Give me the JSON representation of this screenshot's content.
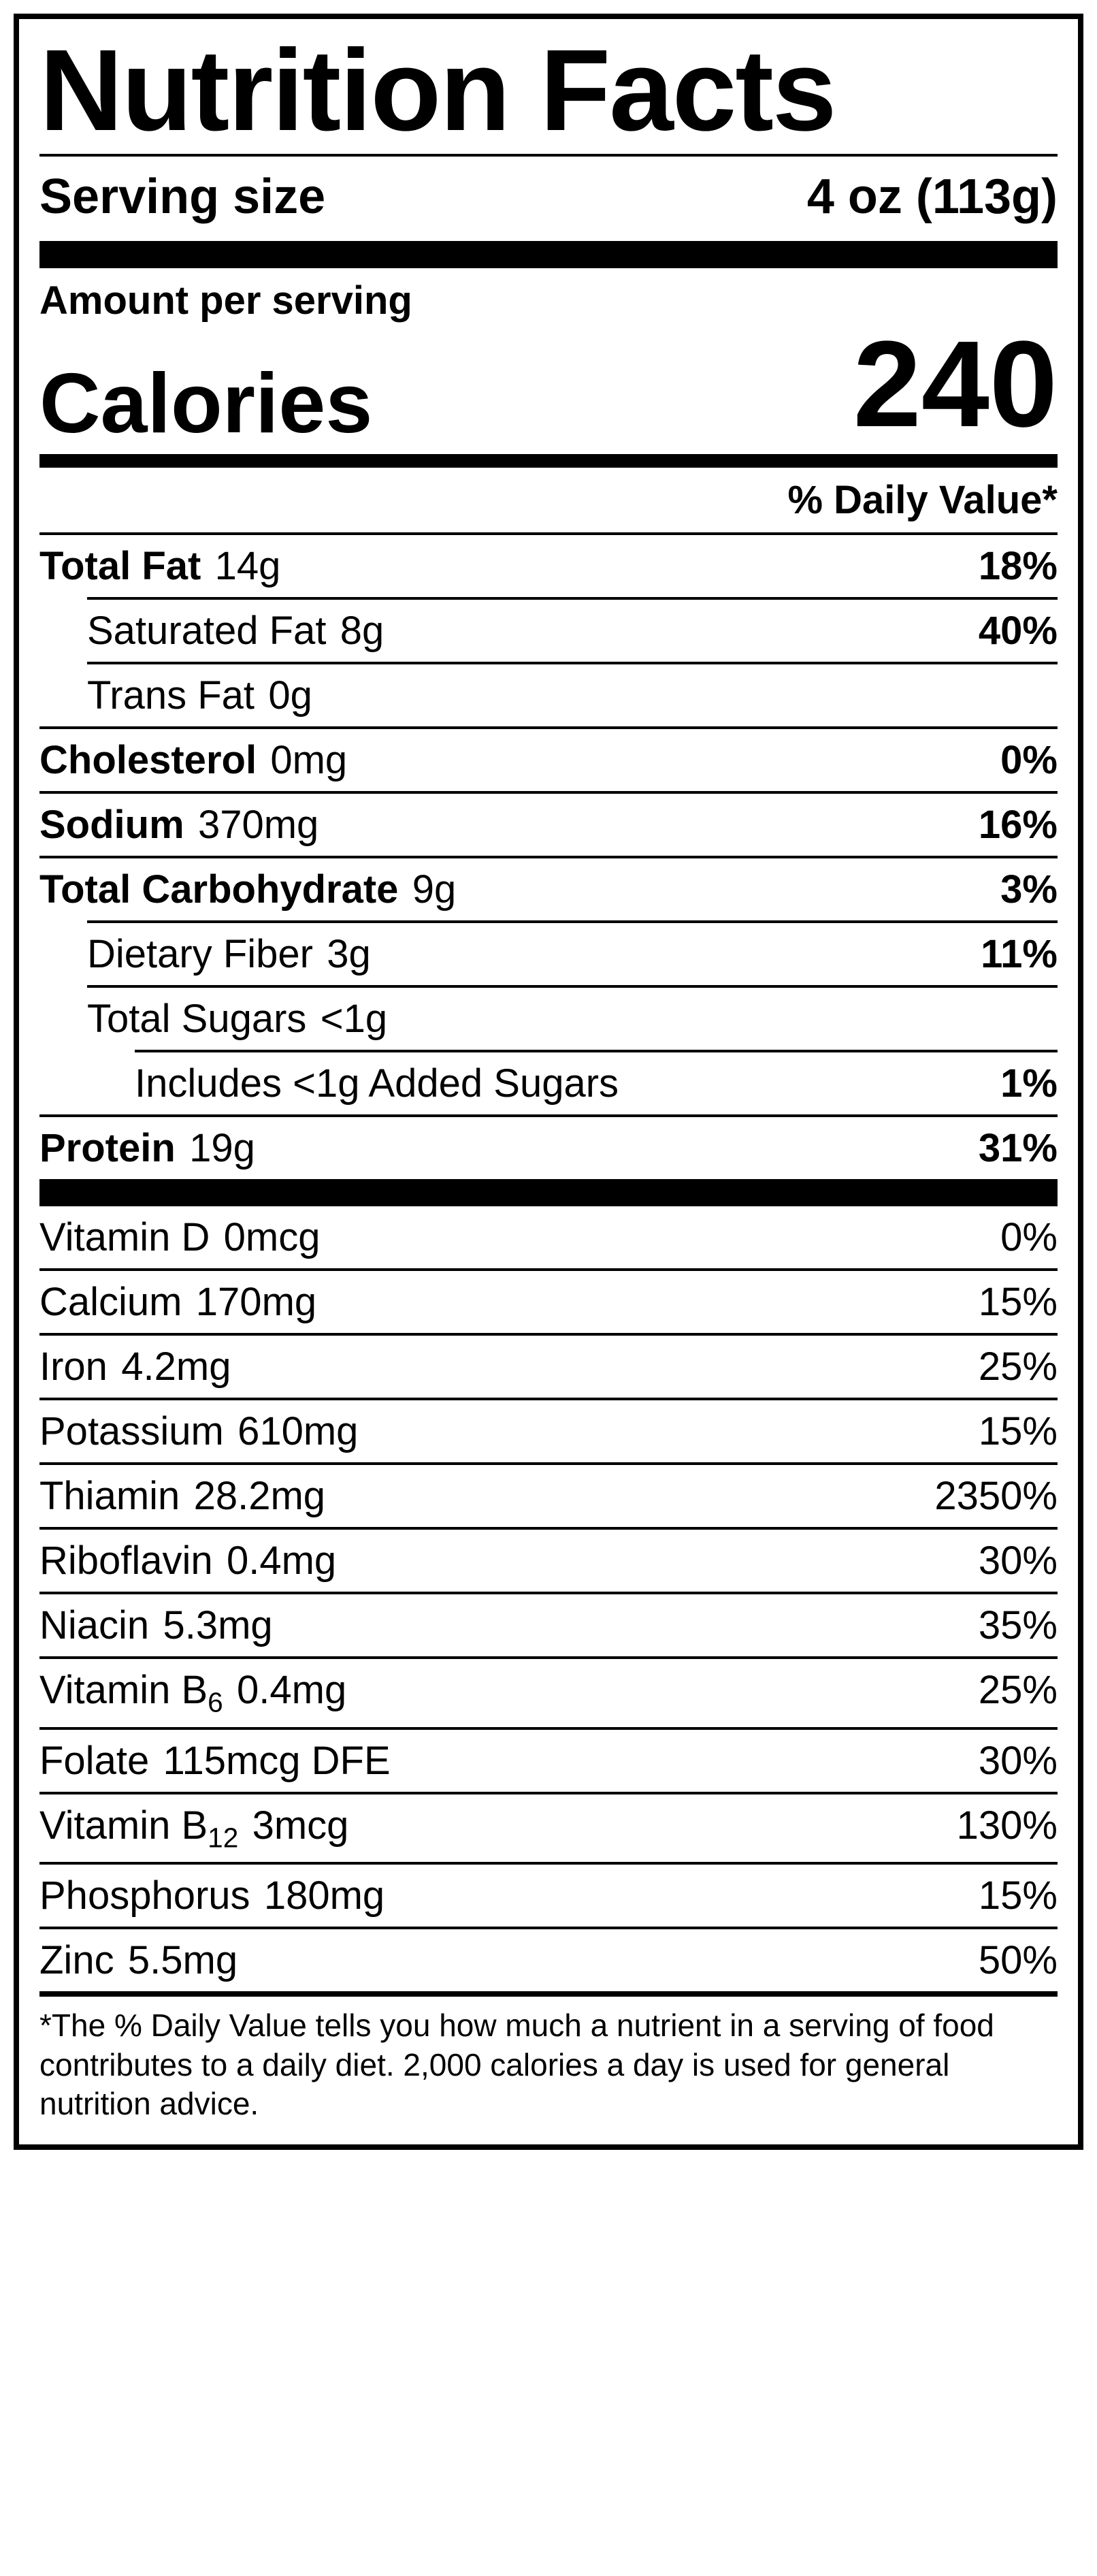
{
  "title": "Nutrition Facts",
  "serving": {
    "label": "Serving size",
    "value": "4 oz (113g)"
  },
  "amount_per_serving_label": "Amount per serving",
  "calories": {
    "label": "Calories",
    "value": "240"
  },
  "dv_header": "% Daily Value*",
  "macros": [
    {
      "indent": 0,
      "name": "Total Fat",
      "amount": "14g",
      "dv": "18%",
      "bold": true
    },
    {
      "indent": 1,
      "name": "Saturated Fat",
      "amount": "8g",
      "dv": "40%",
      "bold": false,
      "dv_bold": true
    },
    {
      "indent": 1,
      "name": "Trans Fat",
      "amount": "0g",
      "dv": "",
      "bold": false
    },
    {
      "indent": 0,
      "name": "Cholesterol",
      "amount": "0mg",
      "dv": "0%",
      "bold": true
    },
    {
      "indent": 0,
      "name": "Sodium",
      "amount": "370mg",
      "dv": "16%",
      "bold": true
    },
    {
      "indent": 0,
      "name": "Total Carbohydrate",
      "amount": "9g",
      "dv": "3%",
      "bold": true
    },
    {
      "indent": 1,
      "name": "Dietary Fiber",
      "amount": "3g",
      "dv": "11%",
      "bold": false,
      "dv_bold": true
    },
    {
      "indent": 1,
      "name": "Total Sugars",
      "amount": "<1g",
      "dv": "",
      "bold": false
    },
    {
      "indent": 2,
      "name": "Includes <1g Added Sugars",
      "amount": "",
      "dv": "1%",
      "bold": false,
      "dv_bold": true
    },
    {
      "indent": 0,
      "name": "Protein",
      "amount": "19g",
      "dv": "31%",
      "bold": true
    }
  ],
  "micros": [
    {
      "name": "Vitamin D",
      "amount": "0mcg",
      "dv": "0%"
    },
    {
      "name": "Calcium",
      "amount": "170mg",
      "dv": "15%"
    },
    {
      "name": "Iron",
      "amount": "4.2mg",
      "dv": "25%"
    },
    {
      "name": "Potassium",
      "amount": "610mg",
      "dv": "15%"
    },
    {
      "name": "Thiamin",
      "amount": "28.2mg",
      "dv": "2350%"
    },
    {
      "name": "Riboflavin",
      "amount": "0.4mg",
      "dv": "30%"
    },
    {
      "name": "Niacin",
      "amount": "5.3mg",
      "dv": "35%"
    },
    {
      "name_html": "Vitamin B<span class=\"sub\">6</span>",
      "amount": "0.4mg",
      "dv": "25%"
    },
    {
      "name": "Folate",
      "amount": "115mcg DFE",
      "dv": "30%"
    },
    {
      "name_html": "Vitamin B<span class=\"sub\">12</span>",
      "amount": "3mcg",
      "dv": "130%"
    },
    {
      "name": "Phosphorus",
      "amount": "180mg",
      "dv": "15%"
    },
    {
      "name": "Zinc",
      "amount": "5.5mg",
      "dv": "50%"
    }
  ],
  "footnote": "*The % Daily Value tells you how much a nutrient in a serving of food contributes to a daily diet. 2,000 calories a day is used for general nutrition advice.",
  "style": {
    "border_color": "#000000",
    "background": "#ffffff",
    "font": "Arial"
  }
}
